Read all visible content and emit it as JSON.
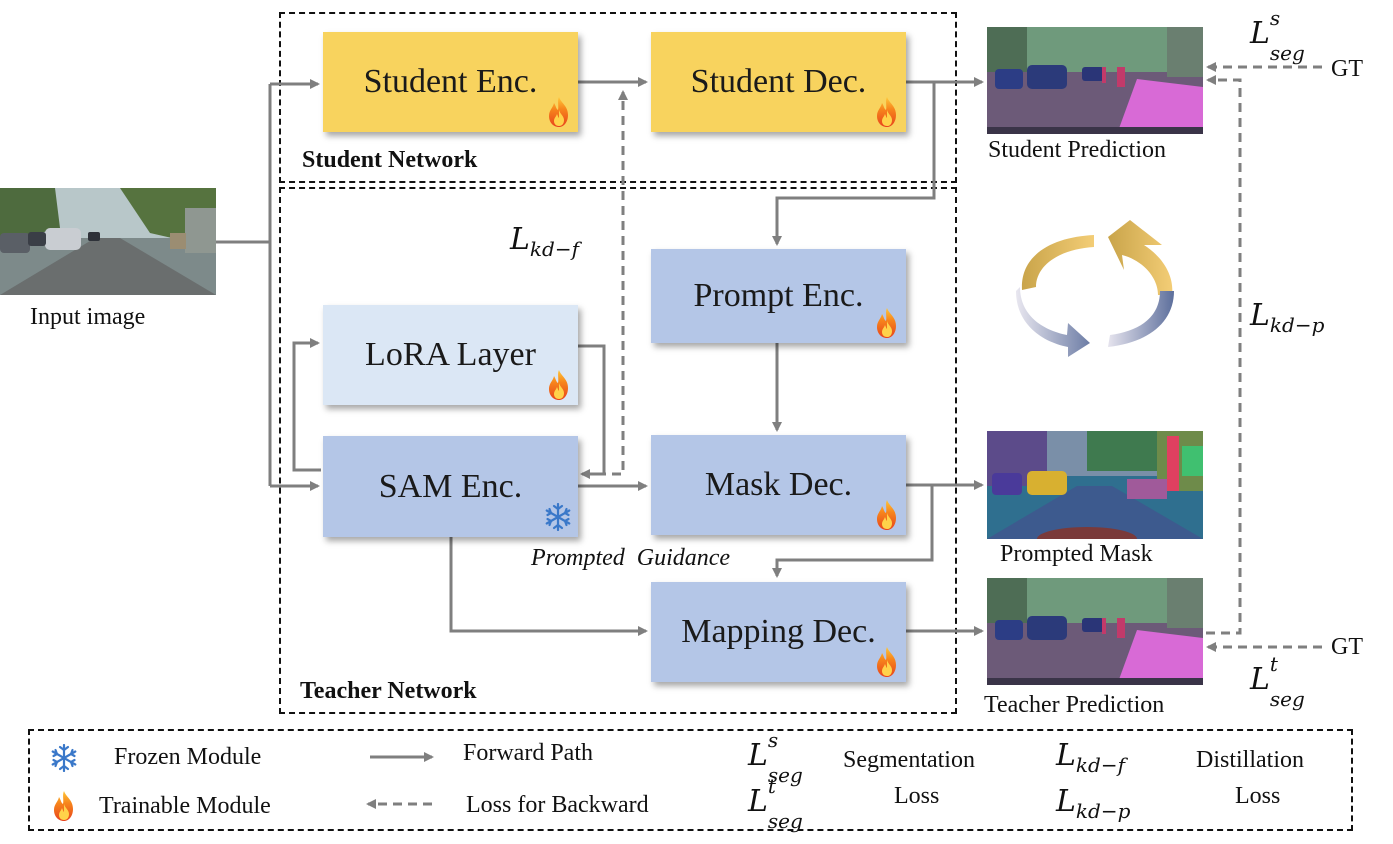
{
  "boxes": {
    "student_enc": "Student Enc.",
    "student_dec": "Student Dec.",
    "prompt_enc": "Prompt Enc.",
    "lora": "LoRA Layer",
    "sam_enc": "SAM Enc.",
    "mask_dec": "Mask Dec.",
    "mapping_dec": "Mapping Dec."
  },
  "networks": {
    "student": "Student Network",
    "teacher": "Teacher Network"
  },
  "captions": {
    "input": "Input image",
    "student_pred": "Student Prediction",
    "prompted_mask": "Prompted Mask",
    "teacher_pred": "Teacher Prediction",
    "gt_top": "GT",
    "gt_bottom": "GT",
    "prompted_guidance": "Prompted  Guidance"
  },
  "losses": {
    "seg_s": {
      "base": "L",
      "sup": "s",
      "sub": "seg"
    },
    "seg_t": {
      "base": "L",
      "sup": "t",
      "sub": "seg"
    },
    "kd_f": {
      "base": "L",
      "sub": "kd−f"
    },
    "kd_p": {
      "base": "L",
      "sub": "kd−p"
    }
  },
  "legend": {
    "frozen": "Frozen Module",
    "trainable": "Trainable Module",
    "forward": "Forward Path",
    "backward": "Loss for Backward",
    "seg_loss_line1": "Segmentation",
    "seg_loss_line2": "Loss",
    "distill_line1": "Distillation",
    "distill_line2": "Loss"
  },
  "colors": {
    "student_box": "#f8d35e",
    "teacher_box": "#b4c6e7",
    "lora_box": "#dbe7f5",
    "arrow": "#7f7f7f",
    "segment_overlay": "#e040e0"
  },
  "icons": {
    "trainable": "flame-icon",
    "frozen": "snowflake-icon",
    "cycle": "cycle-arrows-icon"
  }
}
